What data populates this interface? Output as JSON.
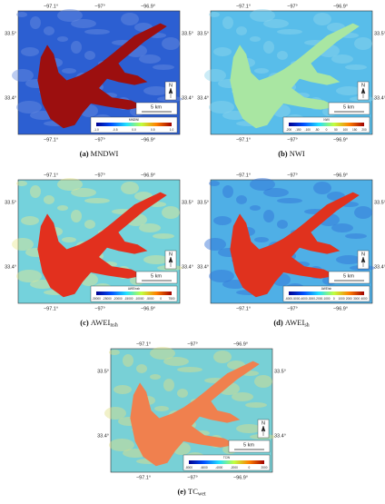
{
  "axis_labels": {
    "longitude": [
      "−97.1°",
      "−97°",
      "−96.9°"
    ],
    "latitude": [
      "33.5°",
      "33.4°"
    ]
  },
  "north_label": "N",
  "scale_label": "5 km",
  "panels": [
    {
      "letter": "(a)",
      "name": "MNDWI",
      "colorbar": {
        "title": "MNDWI",
        "ticks": [
          "-1.0",
          "-0.5",
          "0.0",
          "0.5",
          "1.0"
        ]
      }
    },
    {
      "letter": "(b)",
      "name": "NWI",
      "colorbar": {
        "title": "NWI",
        "ticks": [
          "-200",
          "-150",
          "-100",
          "-50",
          "0",
          "50",
          "100",
          "150",
          "200"
        ]
      }
    },
    {
      "letter": "(c)",
      "name": "AWEI",
      "subscript": "nsh",
      "colorbar": {
        "title": "AWEInsh",
        "ticks": [
          "-30000",
          "-25000",
          "-20000",
          "-15000",
          "-10000",
          "-5000",
          "0",
          "7500"
        ]
      }
    },
    {
      "letter": "(d)",
      "name": "AWEI",
      "subscript": "sh",
      "colorbar": {
        "title": "AWEIsh",
        "ticks": [
          "-6000",
          "-5000",
          "-4000",
          "-3000",
          "-2000",
          "-1000",
          "0",
          "1000",
          "2000",
          "3000",
          "4000"
        ]
      }
    },
    {
      "letter": "(e)",
      "name": "TC",
      "subscript": "wet",
      "colorbar": {
        "title": "TCW",
        "ticks": [
          "-8000",
          "-6000",
          "-4000",
          "-2000",
          "0",
          "2000"
        ]
      }
    }
  ]
}
